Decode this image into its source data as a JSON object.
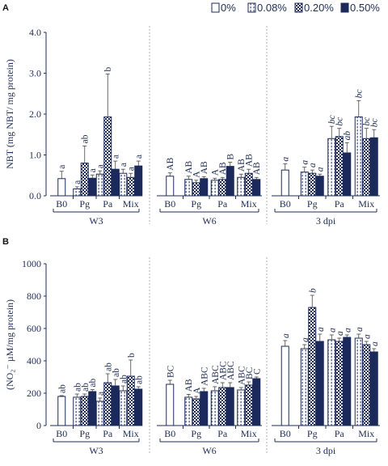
{
  "legend": [
    {
      "label": "0%",
      "pattern": "white"
    },
    {
      "label": "0.08%",
      "pattern": "dashed"
    },
    {
      "label": "0.20%",
      "pattern": "checker"
    },
    {
      "label": "0.50%",
      "pattern": "navy"
    }
  ],
  "colors": {
    "navy": "#1b2a5a",
    "axis": "#1f2d55",
    "divider": "#b0b0b0"
  },
  "chart_data": [
    {
      "panel": "A",
      "type": "bar",
      "ylabel": "NBT (mg NBT/ mg protein)",
      "ylim": [
        0,
        4
      ],
      "yticks": [
        "0.0",
        "1.0",
        "2.0",
        "3.0",
        "4.0"
      ],
      "grid": false,
      "legend_position": "top-right",
      "groups": [
        {
          "name": "W3",
          "letter_style": "normal",
          "categories": [
            {
              "label": "B0",
              "bars": [
                {
                  "v": 0.42,
                  "e": 0.18,
                  "l": "a"
                }
              ]
            },
            {
              "label": "Pg",
              "bars": [
                {
                  "v": 0.17,
                  "e": 0.05,
                  "l": "a"
                },
                {
                  "v": 0.8,
                  "e": 0.42,
                  "l": "ab"
                },
                {
                  "v": 0.43,
                  "e": 0.08,
                  "l": "a"
                }
              ]
            },
            {
              "label": "Pa",
              "bars": [
                {
                  "v": 0.53,
                  "e": 0.08,
                  "l": "a"
                },
                {
                  "v": 1.93,
                  "e": 1.05,
                  "l": "b"
                },
                {
                  "v": 0.65,
                  "e": 0.2,
                  "l": "a"
                }
              ]
            },
            {
              "label": "Mix",
              "bars": [
                {
                  "v": 0.55,
                  "e": 0.1,
                  "l": "a"
                },
                {
                  "v": 0.45,
                  "e": 0.1,
                  "l": "a"
                },
                {
                  "v": 0.73,
                  "e": 0.12,
                  "l": "a"
                }
              ]
            }
          ]
        },
        {
          "name": "W6",
          "letter_style": "normal",
          "categories": [
            {
              "label": "B0",
              "bars": [
                {
                  "v": 0.48,
                  "e": 0.08,
                  "l": "AB"
                }
              ]
            },
            {
              "label": "Pg",
              "bars": [
                {
                  "v": 0.4,
                  "e": 0.08,
                  "l": "AB"
                },
                {
                  "v": 0.32,
                  "e": 0.06,
                  "l": "A"
                },
                {
                  "v": 0.42,
                  "e": 0.05,
                  "l": "AB"
                }
              ]
            },
            {
              "label": "Pa",
              "bars": [
                {
                  "v": 0.38,
                  "e": 0.05,
                  "l": "A"
                },
                {
                  "v": 0.4,
                  "e": 0.05,
                  "l": "AB"
                },
                {
                  "v": 0.72,
                  "e": 0.1,
                  "l": "B"
                }
              ]
            },
            {
              "label": "Mix",
              "bars": [
                {
                  "v": 0.45,
                  "e": 0.08,
                  "l": "AB"
                },
                {
                  "v": 0.55,
                  "e": 0.1,
                  "l": "AB"
                },
                {
                  "v": 0.4,
                  "e": 0.05,
                  "l": "AB"
                }
              ]
            }
          ]
        },
        {
          "name": "3 dpi",
          "letter_style": "italic",
          "categories": [
            {
              "label": "B0",
              "bars": [
                {
                  "v": 0.63,
                  "e": 0.15,
                  "l": "a"
                }
              ]
            },
            {
              "label": "Pg",
              "bars": [
                {
                  "v": 0.58,
                  "e": 0.12,
                  "l": "a"
                },
                {
                  "v": 0.55,
                  "e": 0.08,
                  "l": "a"
                },
                {
                  "v": 0.48,
                  "e": 0.05,
                  "l": "a"
                }
              ]
            },
            {
              "label": "Pa",
              "bars": [
                {
                  "v": 1.4,
                  "e": 0.3,
                  "l": "bc"
                },
                {
                  "v": 1.45,
                  "e": 0.2,
                  "l": "bc"
                },
                {
                  "v": 1.05,
                  "e": 0.25,
                  "l": "ab"
                }
              ]
            },
            {
              "label": "Mix",
              "bars": [
                {
                  "v": 1.93,
                  "e": 0.4,
                  "l": "bc"
                },
                {
                  "v": 1.4,
                  "e": 0.25,
                  "l": "bc"
                },
                {
                  "v": 1.42,
                  "e": 0.2,
                  "l": "bc"
                }
              ]
            }
          ]
        }
      ]
    },
    {
      "panel": "B",
      "type": "bar",
      "ylabel": "(NO₂⁻ µM/mg protein)",
      "ylim": [
        0,
        1000
      ],
      "yticks": [
        "0",
        "200",
        "400",
        "600",
        "800",
        "1000"
      ],
      "grid": false,
      "groups": [
        {
          "name": "W3",
          "letter_style": "normal",
          "categories": [
            {
              "label": "B0",
              "bars": [
                {
                  "v": 180,
                  "e": 5,
                  "l": "ab"
                }
              ]
            },
            {
              "label": "Pg",
              "bars": [
                {
                  "v": 175,
                  "e": 20,
                  "l": "ab"
                },
                {
                  "v": 180,
                  "e": 15,
                  "l": "ab"
                },
                {
                  "v": 210,
                  "e": 12,
                  "l": "ab"
                }
              ]
            },
            {
              "label": "Pa",
              "bars": [
                {
                  "v": 150,
                  "e": 20,
                  "l": "a"
                },
                {
                  "v": 265,
                  "e": 55,
                  "l": "ab"
                },
                {
                  "v": 245,
                  "e": 40,
                  "l": "ab"
                }
              ]
            },
            {
              "label": "Mix",
              "bars": [
                {
                  "v": 215,
                  "e": 30,
                  "l": "ab"
                },
                {
                  "v": 305,
                  "e": 100,
                  "l": "b"
                },
                {
                  "v": 225,
                  "e": 15,
                  "l": "ab"
                }
              ]
            }
          ]
        },
        {
          "name": "W6",
          "letter_style": "normal",
          "categories": [
            {
              "label": "B0",
              "bars": [
                {
                  "v": 255,
                  "e": 25,
                  "l": "BC"
                }
              ]
            },
            {
              "label": "Pg",
              "bars": [
                {
                  "v": 175,
                  "e": 18,
                  "l": "AB"
                },
                {
                  "v": 165,
                  "e": 15,
                  "l": "A"
                },
                {
                  "v": 210,
                  "e": 20,
                  "l": "ABC"
                }
              ]
            },
            {
              "label": "Pa",
              "bars": [
                {
                  "v": 215,
                  "e": 25,
                  "l": "ABC"
                },
                {
                  "v": 235,
                  "e": 30,
                  "l": "ABC"
                },
                {
                  "v": 235,
                  "e": 30,
                  "l": "ABC"
                }
              ]
            },
            {
              "label": "Mix",
              "bars": [
                {
                  "v": 220,
                  "e": 15,
                  "l": "ABC"
                },
                {
                  "v": 250,
                  "e": 20,
                  "l": "BC"
                },
                {
                  "v": 290,
                  "e": 10,
                  "l": "C"
                }
              ]
            }
          ]
        },
        {
          "name": "3 dpi",
          "letter_style": "italic",
          "categories": [
            {
              "label": "B0",
              "bars": [
                {
                  "v": 490,
                  "e": 35,
                  "l": "a"
                }
              ]
            },
            {
              "label": "Pg",
              "bars": [
                {
                  "v": 475,
                  "e": 25,
                  "l": "a"
                },
                {
                  "v": 730,
                  "e": 75,
                  "l": "b"
                },
                {
                  "v": 520,
                  "e": 45,
                  "l": "a"
                }
              ]
            },
            {
              "label": "Pa",
              "bars": [
                {
                  "v": 530,
                  "e": 30,
                  "l": "a"
                },
                {
                  "v": 520,
                  "e": 20,
                  "l": "a"
                },
                {
                  "v": 545,
                  "e": 15,
                  "l": "a"
                }
              ]
            },
            {
              "label": "Mix",
              "bars": [
                {
                  "v": 540,
                  "e": 25,
                  "l": "a"
                },
                {
                  "v": 500,
                  "e": 20,
                  "l": "a"
                },
                {
                  "v": 455,
                  "e": 20,
                  "l": "a"
                }
              ]
            }
          ]
        }
      ]
    }
  ]
}
